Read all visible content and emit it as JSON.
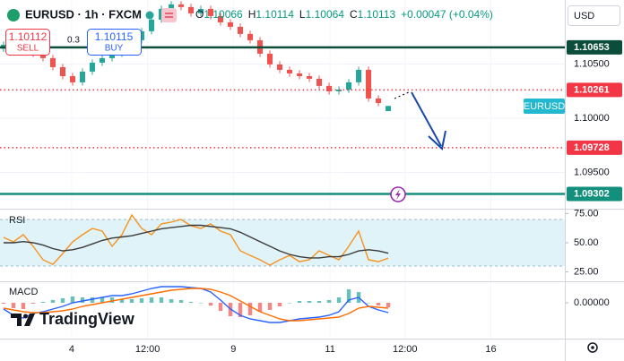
{
  "header": {
    "symbol": "EURUSD · 1h · FXCM",
    "ohlc": [
      {
        "label": "O",
        "value": "1.10066"
      },
      {
        "label": "H",
        "value": "1.10114"
      },
      {
        "label": "L",
        "value": "1.10064"
      },
      {
        "label": "C",
        "value": "1.10113"
      }
    ],
    "change": "+0.00047 (+0.04%)",
    "currency": "USD",
    "symbol_tag": "EURUSD",
    "logo": "TradingView"
  },
  "trade": {
    "sell_price": "1.10112",
    "sell_label": "SELL",
    "spread": "0.3",
    "buy_price": "1.10115",
    "buy_label": "BUY"
  },
  "chart_data": {
    "type": "candlestick",
    "up_color": "#26a69a",
    "down_color": "#ef5350",
    "xlim": [
      -0.36,
      56.9
    ],
    "xticks": [
      {
        "value": 6.9,
        "label": "4"
      },
      {
        "value": 14.6,
        "label": "12:00"
      },
      {
        "value": 23.3,
        "label": "9"
      },
      {
        "value": 33.1,
        "label": "11"
      },
      {
        "value": 40.7,
        "label": "12:00"
      },
      {
        "value": 49.4,
        "label": "16"
      }
    ],
    "ylim": [
      1.09174,
      1.1109
    ],
    "yticks": [
      {
        "value": 1.105,
        "label": "1.10500"
      },
      {
        "value": 1.1,
        "label": "1.10000"
      },
      {
        "value": 1.095,
        "label": "1.09500"
      }
    ],
    "grid": true,
    "levels": [
      {
        "value": 1.10653,
        "color": "#0b4d3a",
        "style": "solid"
      },
      {
        "value": 1.10261,
        "color": "#f23645",
        "style": "dotted"
      },
      {
        "value": 1.09728,
        "color": "#f23645",
        "style": "dotted"
      },
      {
        "value": 1.09302,
        "color": "#138f7e",
        "style": "solid"
      }
    ],
    "open": [
      1.1064,
      1.10678,
      1.10719,
      1.10636,
      1.10595,
      1.10554,
      1.10471,
      1.10388,
      1.10331,
      1.1043,
      1.10512,
      1.10554,
      1.10595,
      1.10636,
      1.10719,
      1.10802,
      1.10909,
      1.11008,
      1.1105,
      1.11025,
      1.10967,
      1.11008,
      1.10942,
      1.10884,
      1.10843,
      1.10777,
      1.10719,
      1.10595,
      1.10496,
      1.10446,
      1.10413,
      1.10388,
      1.10364,
      1.10298,
      1.10248,
      1.10264,
      1.10331,
      1.10446,
      1.10182,
      1.10066
    ],
    "high": [
      1.10708,
      1.10749,
      1.10749,
      1.10666,
      1.10625,
      1.10584,
      1.10501,
      1.10418,
      1.1046,
      1.10542,
      1.10584,
      1.10625,
      1.10666,
      1.10749,
      1.10832,
      1.10939,
      1.11038,
      1.1108,
      1.1108,
      1.11055,
      1.11038,
      1.11038,
      1.10972,
      1.10914,
      1.10873,
      1.10807,
      1.10749,
      1.10625,
      1.10526,
      1.10476,
      1.10443,
      1.10418,
      1.10394,
      1.10328,
      1.10294,
      1.10361,
      1.10476,
      1.10476,
      1.10212,
      1.10114
    ],
    "low": [
      1.1061,
      1.10648,
      1.10606,
      1.10565,
      1.10524,
      1.10441,
      1.10358,
      1.10301,
      1.10301,
      1.104,
      1.10482,
      1.10524,
      1.10565,
      1.10606,
      1.10689,
      1.10772,
      1.10879,
      1.10978,
      1.10995,
      1.10937,
      1.10937,
      1.10912,
      1.10854,
      1.10813,
      1.10747,
      1.10689,
      1.10565,
      1.10466,
      1.10416,
      1.10383,
      1.10358,
      1.10334,
      1.10268,
      1.10218,
      1.10218,
      1.10234,
      1.10301,
      1.10152,
      1.1011,
      1.10064
    ],
    "close": [
      1.10678,
      1.10719,
      1.10636,
      1.10595,
      1.10554,
      1.10471,
      1.10388,
      1.10331,
      1.1043,
      1.10512,
      1.10554,
      1.10595,
      1.10636,
      1.10719,
      1.10802,
      1.10909,
      1.11008,
      1.1105,
      1.11025,
      1.10967,
      1.11008,
      1.10942,
      1.10884,
      1.10843,
      1.10777,
      1.10719,
      1.10595,
      1.10496,
      1.10446,
      1.10413,
      1.10388,
      1.10364,
      1.10298,
      1.10248,
      1.10264,
      1.10331,
      1.10446,
      1.10182,
      1.1014,
      1.10113
    ],
    "rsi": {
      "title": "RSI",
      "ylim": [
        18.5,
        76.9
      ],
      "yticks": [
        {
          "value": 75,
          "label": "75.00"
        },
        {
          "value": 50,
          "label": "50.00"
        },
        {
          "value": 25,
          "label": "25.00"
        }
      ],
      "band": [
        30,
        70
      ],
      "band_color": "#dff3f8",
      "series": [
        {
          "color": "#f7931e",
          "values": [
            54.6,
            50.8,
            56.9,
            46.9,
            35.4,
            31.5,
            40.8,
            50.8,
            56.9,
            62.3,
            60.0,
            46.9,
            56.9,
            73.8,
            62.3,
            56.9,
            66.2,
            67.7,
            70.0,
            64.6,
            62.3,
            66.2,
            60.0,
            56.9,
            43.1,
            39.2,
            35.4,
            30.8,
            35.4,
            39.2,
            33.8,
            35.4,
            43.1,
            39.2,
            35.4,
            46.9,
            60.0,
            35.4,
            33.8,
            36.9
          ]
        },
        {
          "color": "#3a3a3a",
          "values": [
            50,
            50,
            51,
            50,
            48,
            45,
            43,
            44,
            46,
            49,
            52,
            54,
            55,
            56,
            58,
            60,
            62,
            63,
            64,
            65,
            65,
            64,
            63,
            62,
            59,
            55,
            51,
            47,
            43,
            40,
            38,
            37,
            37,
            38,
            38,
            40,
            43,
            44,
            43,
            41
          ]
        }
      ]
    },
    "macd": {
      "title": "MACD",
      "ylim": [
        -0.002,
        0.0011
      ],
      "yticks": [
        {
          "value": 0,
          "label": "0.00000"
        }
      ],
      "histogram_up_color": "#26a69a",
      "histogram_down_color": "#ef5350",
      "histogram": [
        -5e-05,
        -0.0003,
        -0.00035,
        -5e-05,
        5e-05,
        0.00015,
        0.00025,
        0.00035,
        0.0003,
        0.0003,
        0.0003,
        0.0003,
        0.0002,
        0.0002,
        0.00025,
        0.0003,
        0.0003,
        0.0002,
        0.00015,
        5e-05,
        0,
        -0.00015,
        -0.00045,
        -0.00075,
        -0.0008,
        -0.0007,
        -0.0005,
        -0.0004,
        -0.0002,
        0,
        0.0001,
        0.0001,
        0.0001,
        0.00015,
        0.0003,
        0.00075,
        0.0006,
        0,
        -0.00015,
        -0.00025
      ],
      "series": [
        {
          "color": "#2962ff",
          "values": [
            -0.00035,
            -0.0007,
            -0.00085,
            -0.0006,
            -0.0005,
            -0.00035,
            -0.0002,
            0,
            0.0001,
            0.0002,
            0.0003,
            0.0004,
            0.0004,
            0.0005,
            0.00065,
            0.0008,
            0.0009,
            0.0009,
            0.0009,
            0.00085,
            0.0008,
            0.0006,
            0.00015,
            -0.00035,
            -0.0007,
            -0.0009,
            -0.001,
            -0.0011,
            -0.0011,
            -0.001,
            -0.0009,
            -0.00085,
            -0.0008,
            -0.0007,
            -0.0005,
            0.00015,
            0.0003,
            -0.0002,
            -0.0004,
            -0.00055
          ]
        },
        {
          "color": "#ff6d00",
          "values": [
            -0.0003,
            -0.0004,
            -0.0005,
            -0.00055,
            -0.00055,
            -0.0005,
            -0.00045,
            -0.00035,
            -0.0002,
            -0.0001,
            0,
            0.0001,
            0.0002,
            0.0003,
            0.0004,
            0.0005,
            0.0006,
            0.0007,
            0.00075,
            0.0008,
            0.0008,
            0.00075,
            0.0006,
            0.0004,
            0.0001,
            -0.0002,
            -0.0005,
            -0.0007,
            -0.0009,
            -0.001,
            -0.001,
            -0.00095,
            -0.0009,
            -0.00085,
            -0.0008,
            -0.0006,
            -0.0003,
            -0.0002,
            -0.00025,
            -0.0003
          ]
        }
      ]
    }
  }
}
